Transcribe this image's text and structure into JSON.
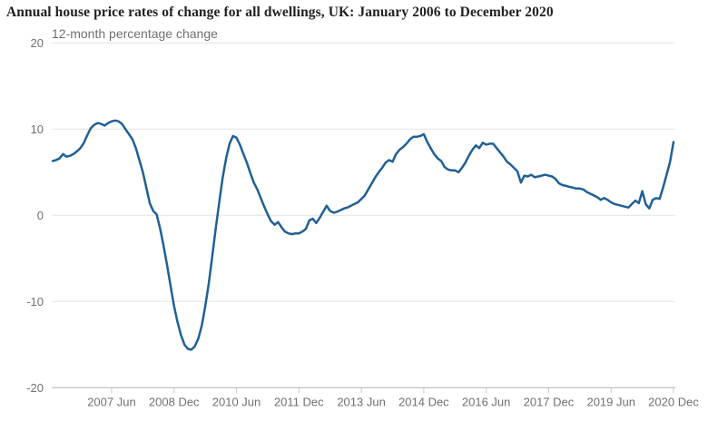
{
  "header": {
    "title": "Annual house price rates of change for all dwellings, UK: January 2006 to December 2020"
  },
  "chart": {
    "subtitle": "12-month percentage change"
  },
  "chart_data": {
    "type": "line",
    "title": "Annual house price rates of change for all dwellings, UK: January 2006 to December 2020",
    "subtitle": "12-month percentage change",
    "xlabel": "",
    "ylabel": "12-month percentage change",
    "x_start": "2006 Jan",
    "x_end": "2020 Dec",
    "x_frequency": "monthly",
    "x_tick_labels": [
      "2007 Jun",
      "2008 Dec",
      "2010 Jun",
      "2011 Dec",
      "2013 Jun",
      "2014 Dec",
      "2016 Jun",
      "2017 Dec",
      "2019 Jun",
      "2020 Dec"
    ],
    "x_tick_month_indices": [
      17,
      35,
      53,
      71,
      89,
      107,
      125,
      143,
      161,
      179
    ],
    "y_ticks": [
      20,
      10,
      0,
      -10,
      -20
    ],
    "ylim": [
      -20,
      20
    ],
    "grid": "horizontal",
    "legend_position": "none",
    "series": [
      {
        "name": "12-month percentage change",
        "values": [
          6.3,
          6.4,
          6.6,
          7.1,
          6.8,
          6.9,
          7.1,
          7.4,
          7.8,
          8.4,
          9.3,
          10.1,
          10.5,
          10.7,
          10.6,
          10.4,
          10.7,
          10.9,
          11.0,
          10.9,
          10.6,
          10.0,
          9.4,
          8.8,
          7.8,
          6.4,
          5.0,
          3.2,
          1.4,
          0.5,
          0.1,
          -1.6,
          -3.6,
          -5.8,
          -8.2,
          -10.5,
          -12.4,
          -13.9,
          -15.0,
          -15.5,
          -15.6,
          -15.2,
          -14.3,
          -12.8,
          -10.6,
          -7.9,
          -4.8,
          -1.6,
          1.4,
          4.3,
          6.6,
          8.3,
          9.2,
          9.0,
          8.2,
          7.1,
          6.1,
          4.9,
          3.8,
          3.0,
          2.0,
          1.0,
          0.1,
          -0.7,
          -1.1,
          -0.8,
          -1.4,
          -1.9,
          -2.1,
          -2.2,
          -2.1,
          -2.1,
          -1.9,
          -1.6,
          -0.6,
          -0.4,
          -0.9,
          -0.3,
          0.4,
          1.1,
          0.5,
          0.3,
          0.4,
          0.6,
          0.8,
          0.9,
          1.1,
          1.3,
          1.5,
          1.9,
          2.3,
          3.0,
          3.7,
          4.4,
          5.0,
          5.5,
          6.1,
          6.4,
          6.2,
          7.1,
          7.6,
          7.9,
          8.3,
          8.8,
          9.1,
          9.1,
          9.2,
          9.4,
          8.5,
          7.8,
          7.1,
          6.6,
          6.3,
          5.6,
          5.3,
          5.2,
          5.2,
          5.0,
          5.5,
          6.1,
          6.9,
          7.6,
          8.1,
          7.8,
          8.4,
          8.2,
          8.3,
          8.3,
          7.8,
          7.3,
          6.8,
          6.2,
          5.9,
          5.5,
          5.1,
          3.8,
          4.6,
          4.5,
          4.7,
          4.4,
          4.5,
          4.6,
          4.7,
          4.6,
          4.5,
          4.2,
          3.7,
          3.5,
          3.4,
          3.3,
          3.2,
          3.1,
          3.1,
          3.0,
          2.7,
          2.5,
          2.3,
          2.1,
          1.8,
          2.0,
          1.8,
          1.5,
          1.3,
          1.2,
          1.1,
          1.0,
          0.9,
          1.3,
          1.7,
          1.4,
          2.8,
          1.3,
          0.8,
          1.8,
          2.0,
          1.9,
          3.2,
          4.7,
          6.2,
          8.5
        ]
      }
    ],
    "colors": {
      "line": "#206095",
      "grid": "#e3e3e3",
      "axis": "#b3b3b3",
      "tick": "#c9c9c9",
      "tick_text": "#707071",
      "title_text": "#222222",
      "subtitle_text": "#707071"
    }
  }
}
